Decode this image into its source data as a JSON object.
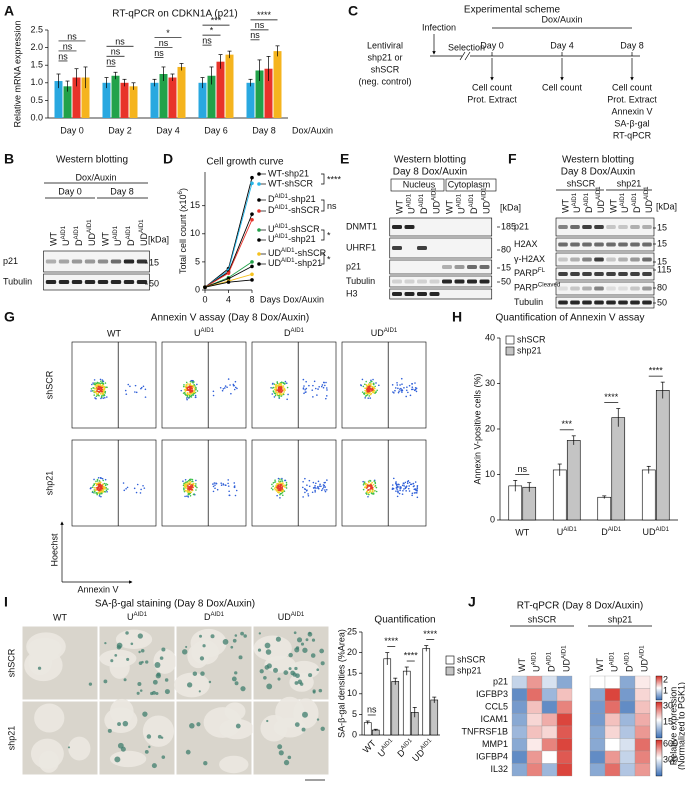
{
  "panel_letters": [
    "A",
    "B",
    "C",
    "D",
    "E",
    "F",
    "G",
    "H",
    "I",
    "J"
  ],
  "chart_data": [
    {
      "type": "bar",
      "title": "RT-qPCR on CDKN1A (p21)",
      "y_label": "Relative mRNA expression",
      "x_suffix": "Dox/Auxin",
      "categories": [
        "Day 0",
        "Day 2",
        "Day 4",
        "Day 6",
        "Day 8"
      ],
      "series": [
        {
          "color": "#29a8e0",
          "values": [
            1.05,
            1.0,
            1.0,
            1.0,
            1.0
          ],
          "errors": [
            0.2,
            0.15,
            0.1,
            0.15,
            0.1
          ]
        },
        {
          "color": "#22a24a",
          "values": [
            0.9,
            1.2,
            1.25,
            1.2,
            1.35
          ],
          "errors": [
            0.15,
            0.1,
            0.2,
            0.25,
            0.3
          ]
        },
        {
          "color": "#e8332a",
          "values": [
            1.15,
            1.0,
            1.15,
            1.6,
            1.4
          ],
          "errors": [
            0.25,
            0.1,
            0.1,
            0.2,
            0.35
          ]
        },
        {
          "color": "#f5b41e",
          "values": [
            1.15,
            0.9,
            1.45,
            1.8,
            1.9
          ],
          "errors": [
            0.3,
            0.1,
            0.1,
            0.1,
            0.15
          ]
        }
      ],
      "ylim": [
        0,
        2.5
      ],
      "yticks": [
        {
          "value": 0,
          "label": "0.0"
        },
        0.5,
        {
          "value": 1,
          "label": "1.0"
        },
        1.5,
        {
          "value": 2,
          "label": "2.0"
        },
        2.5
      ],
      "annotations": [
        [
          "ns",
          "ns",
          "ns"
        ],
        [
          "ns",
          "ns",
          "ns"
        ],
        [
          "ns",
          "ns",
          "*"
        ],
        [
          "ns",
          "*",
          "***"
        ],
        [
          "ns",
          "ns",
          "****"
        ]
      ]
    },
    {
      "type": "line",
      "title": "Cell growth curve",
      "x_label": "Days Dox/Auxin",
      "y_label": {
        "text": "Total cell count (x10",
        "sup": "6",
        "after": ")"
      },
      "x": [
        0,
        4,
        8
      ],
      "xlim": [
        0,
        8
      ],
      "xticks": [
        0,
        4,
        8
      ],
      "ylim": [
        0,
        21
      ],
      "yticks": [
        0,
        5,
        10,
        15
      ],
      "series": [
        {
          "name": "WT-shp21",
          "color": "#000000",
          "values": [
            0.5,
            3.8,
            20
          ]
        },
        {
          "name": "WT-shSCR",
          "color": "#29b6e8",
          "values": [
            0.5,
            3.5,
            19
          ]
        },
        {
          "name": {
            "text": "D",
            "sup": "AID1",
            "after": "-shp21"
          },
          "color": "#000000",
          "values": [
            0.5,
            3.2,
            13.5
          ]
        },
        {
          "name": {
            "text": "D",
            "sup": "AID1",
            "after": "-shSCR"
          },
          "color": "#e8332a",
          "values": [
            0.5,
            3.0,
            12.5
          ]
        },
        {
          "name": {
            "text": "U",
            "sup": "AID1",
            "after": "-shSCR"
          },
          "color": "#22a24a",
          "values": [
            0.5,
            2.2,
            5
          ]
        },
        {
          "name": {
            "text": "U",
            "sup": "AID1",
            "after": "-shp21"
          },
          "color": "#000000",
          "values": [
            0.5,
            2.0,
            4.2
          ]
        },
        {
          "name": {
            "text": "UD",
            "sup": "AID1",
            "after": "-shSCR"
          },
          "color": "#f5c11e",
          "values": [
            0.5,
            1.6,
            2.8
          ]
        },
        {
          "name": {
            "text": "UD",
            "sup": "AID1",
            "after": "-shp21"
          },
          "color": "#000000",
          "values": [
            0.5,
            1.4,
            1.8
          ]
        }
      ],
      "annotations": [
        "****",
        "ns",
        "*",
        "*"
      ]
    },
    {
      "type": "bar",
      "title": "Quantification of Annexin V assay",
      "y_label": "Annexin V-positive cells (%)",
      "categories": [
        "WT",
        {
          "text": "U",
          "sup": "AID1"
        },
        {
          "text": "D",
          "sup": "AID1"
        },
        {
          "text": "UD",
          "sup": "AID1"
        }
      ],
      "series": [
        {
          "name": "shSCR",
          "color": "#ffffff",
          "values": [
            7.5,
            11,
            5,
            11
          ],
          "errors": [
            1.2,
            1.3,
            0.3,
            0.8
          ]
        },
        {
          "name": "shp21",
          "color": "#c4c4c4",
          "values": [
            7.2,
            17.5,
            22.5,
            28.5
          ],
          "errors": [
            1.0,
            1.0,
            2.0,
            1.8
          ]
        }
      ],
      "ylim": [
        0,
        40
      ],
      "yticks": [
        0,
        10,
        20,
        30,
        40
      ],
      "annotations": [
        "ns",
        "***",
        "****",
        "****"
      ]
    },
    {
      "type": "bar",
      "title": "Quantification",
      "y_label": "SA-β-gal densities (%Area)",
      "categories": [
        "WT",
        {
          "text": "U",
          "sup": "AID1"
        },
        {
          "text": "D",
          "sup": "AID1"
        },
        {
          "text": "UD",
          "sup": "AID1"
        }
      ],
      "series": [
        {
          "name": "shSCR",
          "color": "#ffffff",
          "values": [
            3,
            18.5,
            15.5,
            21
          ],
          "errors": [
            0.4,
            1.5,
            1.0,
            0.7
          ]
        },
        {
          "name": "shp21",
          "color": "#c4c4c4",
          "values": [
            1.2,
            13,
            5.5,
            8.5
          ],
          "errors": [
            0.2,
            0.8,
            1.2,
            0.7
          ]
        }
      ],
      "ylim": [
        0,
        25
      ],
      "yticks": [
        0,
        5,
        10,
        15,
        20,
        25
      ],
      "annotations": [
        "ns",
        "****",
        "****",
        "****"
      ]
    }
  ],
  "panel_b": {
    "title": "Western blotting",
    "treatment": "Dox/Auxin",
    "groups": [
      "Day 0",
      "Day 8"
    ],
    "lanes": [
      "WT",
      {
        "text": "U",
        "sup": "AID1"
      },
      {
        "text": "D",
        "sup": "AID1"
      },
      {
        "text": "UD",
        "sup": "AID1"
      },
      "WT",
      {
        "text": "U",
        "sup": "AID1"
      },
      {
        "text": "D",
        "sup": "AID1"
      },
      {
        "text": "UD",
        "sup": "AID1"
      }
    ],
    "rows": [
      "p21",
      "Tubulin"
    ],
    "kda_header": "[kDa]",
    "kda": [
      "15",
      "50"
    ]
  },
  "panel_c": {
    "title": "Experimental scheme",
    "infection": "Infection",
    "selection": "Selection",
    "treatment": "Dox/Auxin",
    "vector": [
      "Lentiviral",
      "shp21 or",
      "shSCR",
      "(neg. control)"
    ],
    "days": [
      "Day 0",
      "Day 4",
      "Day 8"
    ],
    "readouts": [
      [
        "Cell count",
        "Prot. Extract"
      ],
      [
        "Cell count"
      ],
      [
        "Cell count",
        "Prot. Extract",
        "Annexin V",
        "SA-β-gal",
        "RT-qPCR"
      ]
    ]
  },
  "panel_e": {
    "title": "Western blotting",
    "subtitle": "Day 8 Dox/Auxin",
    "fractions": [
      "Nucleus",
      "Cytoplasm"
    ],
    "lanes": [
      "WT",
      {
        "text": "U",
        "sup": "AID1"
      },
      {
        "text": "D",
        "sup": "AID1"
      },
      {
        "text": "UD",
        "sup": "AID1"
      },
      "WT",
      {
        "text": "U",
        "sup": "AID1"
      },
      {
        "text": "D",
        "sup": "AID1"
      },
      {
        "text": "UD",
        "sup": "AID1"
      }
    ],
    "rows": [
      "DNMT1",
      "UHRF1",
      "p21",
      "Tubulin",
      "H3"
    ],
    "kda_header": "[kDa]",
    "kda": [
      "185",
      "80",
      "15",
      "50"
    ]
  },
  "panel_f": {
    "title": "Western blotting",
    "subtitle": "Day 8 Dox/Auxin",
    "groups": [
      "shSCR",
      "shp21"
    ],
    "lanes": [
      "WT",
      {
        "text": "U",
        "sup": "AID1"
      },
      {
        "text": "D",
        "sup": "AID1"
      },
      {
        "text": "UD",
        "sup": "AID1"
      },
      "WT",
      {
        "text": "U",
        "sup": "AID1"
      },
      {
        "text": "D",
        "sup": "AID1"
      },
      {
        "text": "UD",
        "sup": "AID1"
      }
    ],
    "rows": [
      "p21",
      "H2AX",
      "γ-H2AX",
      {
        "text": "PARP",
        "sup": "FL"
      },
      {
        "text": "PARP",
        "sup": "Cleaved"
      },
      "Tubulin"
    ],
    "kda_header": "[kDa]",
    "kda": [
      "15",
      "15",
      "15",
      "115",
      "80",
      "50"
    ]
  },
  "panel_g": {
    "title": "Annexin V assay (Day 8 Dox/Auxin)",
    "columns": [
      "WT",
      {
        "text": "U",
        "sup": "AID1"
      },
      {
        "text": "D",
        "sup": "AID1"
      },
      {
        "text": "UD",
        "sup": "AID1"
      }
    ],
    "rows": [
      "shSCR",
      "shp21"
    ],
    "y_axis": "Hoechst",
    "x_axis": "Annexin V"
  },
  "panel_i": {
    "title": "SA-β-gal staining (Day 8 Dox/Auxin)",
    "columns": [
      "WT",
      {
        "text": "U",
        "sup": "AID1"
      },
      {
        "text": "D",
        "sup": "AID1"
      },
      {
        "text": "UD",
        "sup": "AID1"
      }
    ],
    "rows": [
      "shSCR",
      "shp21"
    ]
  },
  "panel_j": {
    "title": "RT-qPCR (Day 8 Dox/Auxin)",
    "groups": [
      "shSCR",
      "shp21"
    ],
    "columns": [
      "WT",
      {
        "text": "U",
        "sup": "AID1"
      },
      {
        "text": "D",
        "sup": "AID1"
      },
      {
        "text": "UD",
        "sup": "AID1"
      }
    ],
    "genes": [
      "p21",
      "IGFBP3",
      "CCL5",
      "ICAM1",
      "TNFRSF1B",
      "MMP1",
      "IGFBP4",
      "IL32"
    ],
    "values": [
      [
        -0.3,
        0.5,
        -0.2,
        -0.6,
        0,
        0,
        -0.6,
        0.1
      ],
      [
        -0.8,
        0.7,
        -0.5,
        0.3,
        -0.6,
        0.9,
        -0.7,
        0.2
      ],
      [
        -0.7,
        0.3,
        -0.8,
        0.6,
        -0.7,
        0.7,
        -0.8,
        0.3
      ],
      [
        -0.6,
        0.2,
        0.4,
        0.9,
        -0.7,
        0.3,
        -0.5,
        0.4
      ],
      [
        -0.5,
        0.3,
        0.2,
        0.8,
        -0.6,
        0.2,
        -0.4,
        0.5
      ],
      [
        -0.6,
        0.1,
        0.6,
        0.9,
        -0.6,
        0,
        -0.2,
        0.7
      ],
      [
        -0.8,
        0.5,
        0,
        0.8,
        -0.8,
        0.5,
        -0.3,
        0.6
      ],
      [
        -0.6,
        0.6,
        -0.5,
        0.9,
        -0.6,
        0.7,
        -0.4,
        0.5
      ]
    ],
    "colorbars": [
      [
        2,
        1
      ],
      [
        30,
        15
      ],
      [
        600,
        300
      ]
    ],
    "scale_label": [
      "Relative expression",
      "(Normalized to PGK1)"
    ]
  }
}
